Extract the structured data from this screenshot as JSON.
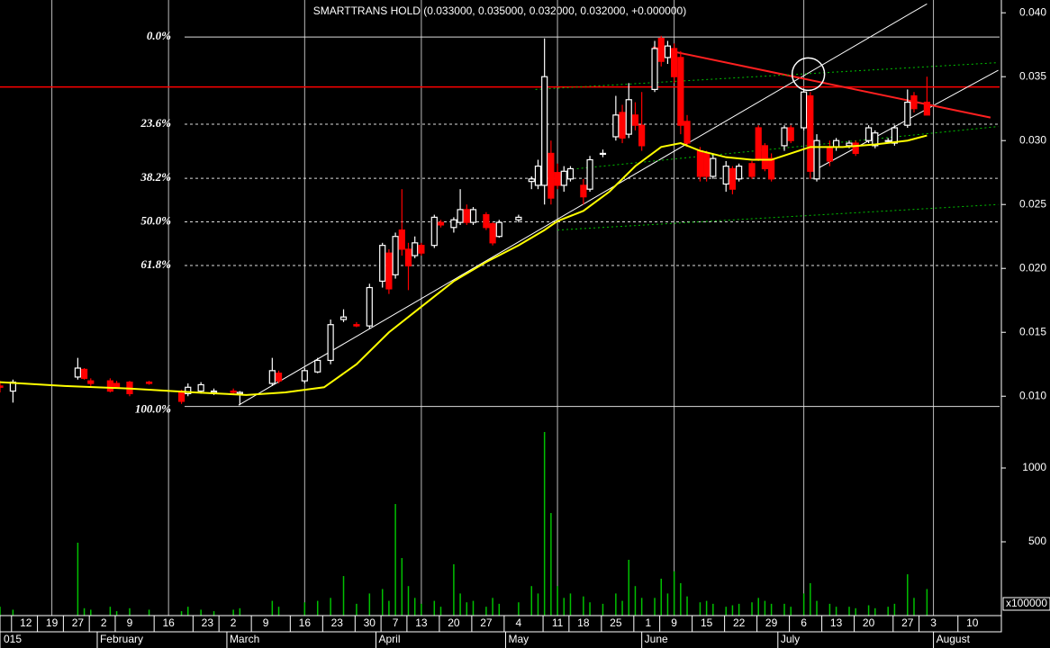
{
  "chart_data": {
    "type": "candlestick",
    "title": "SMARTTRANS HOLD (0.033000, 0.035000, 0.032000, 0.032000, +0.000000)",
    "x": [
      0,
      2,
      12,
      13,
      14,
      17,
      18,
      20,
      23,
      28,
      29,
      31,
      33,
      36,
      37,
      42,
      43,
      47,
      49,
      51,
      53,
      55,
      57,
      59,
      60,
      61,
      62,
      63,
      64,
      65,
      67,
      68,
      70,
      71,
      72,
      73,
      75,
      76,
      77,
      80,
      82,
      83,
      84,
      85,
      86,
      87,
      88,
      90,
      91,
      93,
      95,
      96,
      97,
      98,
      99,
      101,
      102,
      103,
      104,
      105,
      106,
      108,
      109,
      110,
      112,
      113,
      114,
      116,
      117,
      118,
      119,
      121,
      122,
      124,
      125,
      126,
      128,
      129,
      131,
      132,
      134,
      135,
      137,
      138,
      140,
      141,
      143
    ],
    "open": [
      0.0108,
      0.0104,
      0.0115,
      0.0121,
      0.0112,
      0.0112,
      0.011,
      0.0111,
      0.0111,
      0.0104,
      0.0102,
      0.0104,
      0.0103,
      0.0104,
      0.0102,
      0.011,
      0.0118,
      0.0112,
      0.0119,
      0.0128,
      0.016,
      0.0156,
      0.0155,
      0.019,
      0.0212,
      0.0195,
      0.023,
      0.0215,
      0.021,
      0.0218,
      0.0218,
      0.0236,
      0.0232,
      0.0236,
      0.0246,
      0.0236,
      0.0242,
      0.0235,
      0.0225,
      0.0238,
      0.0268,
      0.0265,
      0.0265,
      0.029,
      0.0275,
      0.0265,
      0.027,
      0.0265,
      0.0262,
      0.029,
      0.0303,
      0.0322,
      0.0305,
      0.032,
      0.0312,
      0.034,
      0.038,
      0.0365,
      0.0372,
      0.0365,
      0.0315,
      0.0292,
      0.029,
      0.0272,
      0.0266,
      0.0278,
      0.027,
      0.0282,
      0.031,
      0.0296,
      0.0286,
      0.0296,
      0.031,
      0.031,
      0.0335,
      0.027,
      0.0295,
      0.0295,
      0.0296,
      0.0298,
      0.03,
      0.0296,
      0.03,
      0.0298,
      0.0312,
      0.0335,
      0.033
    ],
    "high": [
      0.0112,
      0.0113,
      0.013,
      0.0122,
      0.0114,
      0.0114,
      0.0112,
      0.0112,
      0.0112,
      0.0105,
      0.011,
      0.0111,
      0.0106,
      0.0106,
      0.0104,
      0.013,
      0.012,
      0.0122,
      0.013,
      0.016,
      0.0168,
      0.0158,
      0.0188,
      0.022,
      0.0215,
      0.0228,
      0.0262,
      0.022,
      0.0225,
      0.022,
      0.0242,
      0.0238,
      0.024,
      0.0262,
      0.025,
      0.0248,
      0.0244,
      0.0236,
      0.0238,
      0.0242,
      0.0272,
      0.0285,
      0.038,
      0.03,
      0.0282,
      0.028,
      0.028,
      0.027,
      0.0288,
      0.0293,
      0.0335,
      0.0328,
      0.0345,
      0.033,
      0.0338,
      0.0378,
      0.0382,
      0.0378,
      0.0376,
      0.037,
      0.032,
      0.0295,
      0.0292,
      0.029,
      0.0284,
      0.028,
      0.0282,
      0.0284,
      0.0312,
      0.0298,
      0.029,
      0.0312,
      0.0312,
      0.034,
      0.0338,
      0.0305,
      0.03,
      0.0302,
      0.03,
      0.03,
      0.0312,
      0.0308,
      0.0302,
      0.0312,
      0.034,
      0.0338,
      0.035
    ],
    "low": [
      0.0103,
      0.0095,
      0.0113,
      0.0113,
      0.0108,
      0.0103,
      0.0106,
      0.01,
      0.0109,
      0.0094,
      0.01,
      0.0102,
      0.0101,
      0.0102,
      0.0093,
      0.0108,
      0.011,
      0.011,
      0.0118,
      0.0125,
      0.0158,
      0.0154,
      0.0153,
      0.0185,
      0.018,
      0.0192,
      0.021,
      0.0183,
      0.0208,
      0.021,
      0.0216,
      0.0232,
      0.0228,
      0.0234,
      0.0234,
      0.0234,
      0.023,
      0.0218,
      0.0224,
      0.0236,
      0.0262,
      0.0262,
      0.025,
      0.025,
      0.0262,
      0.026,
      0.0268,
      0.025,
      0.026,
      0.0287,
      0.03,
      0.0298,
      0.0302,
      0.0308,
      0.0292,
      0.0338,
      0.0358,
      0.036,
      0.0345,
      0.0305,
      0.0295,
      0.0268,
      0.0268,
      0.027,
      0.026,
      0.0258,
      0.0268,
      0.027,
      0.0284,
      0.0276,
      0.0268,
      0.0292,
      0.0298,
      0.0308,
      0.027,
      0.0268,
      0.028,
      0.0292,
      0.0294,
      0.0288,
      0.0298,
      0.0294,
      0.0298,
      0.0296,
      0.031,
      0.0322,
      0.032
    ],
    "close": [
      0.0107,
      0.0111,
      0.0122,
      0.0114,
      0.011,
      0.0104,
      0.0107,
      0.0102,
      0.011,
      0.0096,
      0.0107,
      0.0109,
      0.0104,
      0.0103,
      0.0103,
      0.012,
      0.0112,
      0.012,
      0.0128,
      0.0156,
      0.0162,
      0.0155,
      0.0185,
      0.0218,
      0.0184,
      0.0225,
      0.0215,
      0.0202,
      0.022,
      0.0212,
      0.024,
      0.0234,
      0.0238,
      0.0246,
      0.0236,
      0.0246,
      0.0232,
      0.022,
      0.0236,
      0.024,
      0.027,
      0.028,
      0.035,
      0.0255,
      0.0265,
      0.0276,
      0.0278,
      0.0256,
      0.0285,
      0.029,
      0.032,
      0.0302,
      0.0332,
      0.0312,
      0.0296,
      0.0372,
      0.0362,
      0.0374,
      0.035,
      0.0312,
      0.0298,
      0.0272,
      0.0272,
      0.0286,
      0.028,
      0.0262,
      0.028,
      0.0272,
      0.0286,
      0.0278,
      0.027,
      0.031,
      0.03,
      0.0338,
      0.0276,
      0.03,
      0.0284,
      0.03,
      0.0298,
      0.029,
      0.031,
      0.0306,
      0.03,
      0.031,
      0.033,
      0.0325,
      0.032
    ],
    "up_color": "#ffffff",
    "down_color": "#ff0000",
    "xlim": [
      0,
      154.2
    ],
    "ylim": [
      0.0072,
      0.041
    ],
    "yticks": [
      {
        "value": 0.04,
        "label": "0.040"
      },
      {
        "value": 0.035,
        "label": "0.035"
      },
      {
        "value": 0.03,
        "label": "0.030"
      },
      {
        "value": 0.025,
        "label": "0.025"
      },
      {
        "value": 0.02,
        "label": "0.020"
      },
      {
        "value": 0.015,
        "label": "0.015"
      },
      {
        "value": 0.01,
        "label": "0.010"
      }
    ],
    "xticks": [
      {
        "value": 4,
        "label": "12"
      },
      {
        "value": 8,
        "label": "19"
      },
      {
        "value": 12,
        "label": "27"
      },
      {
        "value": 16,
        "label": "2"
      },
      {
        "value": 20,
        "label": "9"
      },
      {
        "value": 26,
        "label": "16"
      },
      {
        "value": 32,
        "label": "23"
      },
      {
        "value": 36,
        "label": "2"
      },
      {
        "value": 41,
        "label": "9"
      },
      {
        "value": 47,
        "label": "16"
      },
      {
        "value": 52,
        "label": "23"
      },
      {
        "value": 57,
        "label": "30"
      },
      {
        "value": 61,
        "label": "7"
      },
      {
        "value": 65,
        "label": "13"
      },
      {
        "value": 70,
        "label": "20"
      },
      {
        "value": 75,
        "label": "27"
      },
      {
        "value": 80,
        "label": "4"
      },
      {
        "value": 86,
        "label": "11"
      },
      {
        "value": 90,
        "label": "18"
      },
      {
        "value": 95,
        "label": "25"
      },
      {
        "value": 100,
        "label": "1"
      },
      {
        "value": 104,
        "label": "9"
      },
      {
        "value": 109,
        "label": "15"
      },
      {
        "value": 114,
        "label": "22"
      },
      {
        "value": 119,
        "label": "29"
      },
      {
        "value": 124,
        "label": "6"
      },
      {
        "value": 129,
        "label": "13"
      },
      {
        "value": 134,
        "label": "20"
      },
      {
        "value": 140,
        "label": "27"
      },
      {
        "value": 144,
        "label": "3"
      },
      {
        "value": 150,
        "label": "10"
      }
    ],
    "months": [
      {
        "value": 0,
        "label": "015"
      },
      {
        "value": 15,
        "label": "February"
      },
      {
        "value": 35,
        "label": "March"
      },
      {
        "value": 58,
        "label": "April"
      },
      {
        "value": 78,
        "label": "May"
      },
      {
        "value": 99,
        "label": "June"
      },
      {
        "value": 120,
        "label": "July"
      },
      {
        "value": 144,
        "label": "August"
      }
    ],
    "volume": {
      "values": [
        60,
        40,
        494,
        50,
        40,
        60,
        30,
        50,
        40,
        30,
        60,
        40,
        30,
        40,
        50,
        100,
        60,
        90,
        100,
        120,
        268,
        80,
        150,
        180,
        100,
        756,
        390,
        200,
        120,
        80,
        100,
        60,
        348,
        150,
        90,
        100,
        60,
        120,
        80,
        90,
        200,
        150,
        1244,
        695,
        200,
        120,
        150,
        130,
        90,
        80,
        150,
        100,
        378,
        200,
        120,
        120,
        250,
        150,
        300,
        220,
        130,
        90,
        100,
        80,
        60,
        70,
        80,
        90,
        120,
        100,
        80,
        80,
        60,
        150,
        220,
        100,
        80,
        60,
        60,
        50,
        70,
        50,
        60,
        80,
        280,
        120,
        180
      ],
      "color": "#00c000",
      "ylim": [
        0,
        1244
      ],
      "yticks": [
        500,
        1000
      ],
      "unit_label": "x100000"
    },
    "moving_average": {
      "color": "#ffff00",
      "x": [
        0,
        10,
        20,
        30,
        38,
        44,
        50,
        55,
        60,
        65,
        70,
        75,
        80,
        84,
        86,
        90,
        94,
        98,
        102,
        105,
        108,
        112,
        116,
        119,
        122,
        125,
        130,
        135,
        140,
        143
      ],
      "values": [
        0.0111,
        0.0108,
        0.0106,
        0.0103,
        0.0101,
        0.0103,
        0.0107,
        0.0125,
        0.015,
        0.017,
        0.019,
        0.0205,
        0.0218,
        0.023,
        0.0237,
        0.0245,
        0.026,
        0.028,
        0.0295,
        0.0298,
        0.0292,
        0.0287,
        0.0285,
        0.0285,
        0.029,
        0.0295,
        0.0295,
        0.0297,
        0.03,
        0.0304
      ]
    },
    "fibonacci": {
      "levels": [
        {
          "value": 0.0381,
          "label": "0.0%"
        },
        {
          "value": 0.03128,
          "label": "23.6%"
        },
        {
          "value": 0.02705,
          "label": "38.2%"
        },
        {
          "value": 0.02364,
          "label": "50.0%"
        },
        {
          "value": 0.02023,
          "label": "61.8%"
        },
        {
          "value": 0.0092,
          "label": "100.0%"
        }
      ]
    },
    "hline": {
      "value": 0.0342,
      "color": "#ff0000"
    },
    "trendlines": [
      {
        "x": [
          36.8,
          143
        ],
        "values": [
          0.0093,
          0.0407
        ],
        "color": "#ffffff",
        "dashed": false
      },
      {
        "x": [
          125.7,
          154
        ],
        "values": [
          0.0277,
          0.0355
        ],
        "color": "#ffffff",
        "dashed": false
      },
      {
        "x": [
          100.7,
          152.8
        ],
        "values": [
          0.0373,
          0.0318
        ],
        "color": "#ff2020",
        "dashed": false
      },
      {
        "x": [
          82.6,
          154
        ],
        "values": [
          0.034,
          0.0361
        ],
        "color": "#00c000",
        "dashed": true
      },
      {
        "x": [
          89,
          154
        ],
        "values": [
          0.0278,
          0.0311
        ],
        "color": "#00c000",
        "dashed": true
      },
      {
        "x": [
          86,
          154
        ],
        "values": [
          0.023,
          0.025
        ],
        "color": "#00c000",
        "dashed": true
      }
    ],
    "circle": {
      "x": 124.7,
      "value": 0.0352
    },
    "grid": true
  }
}
